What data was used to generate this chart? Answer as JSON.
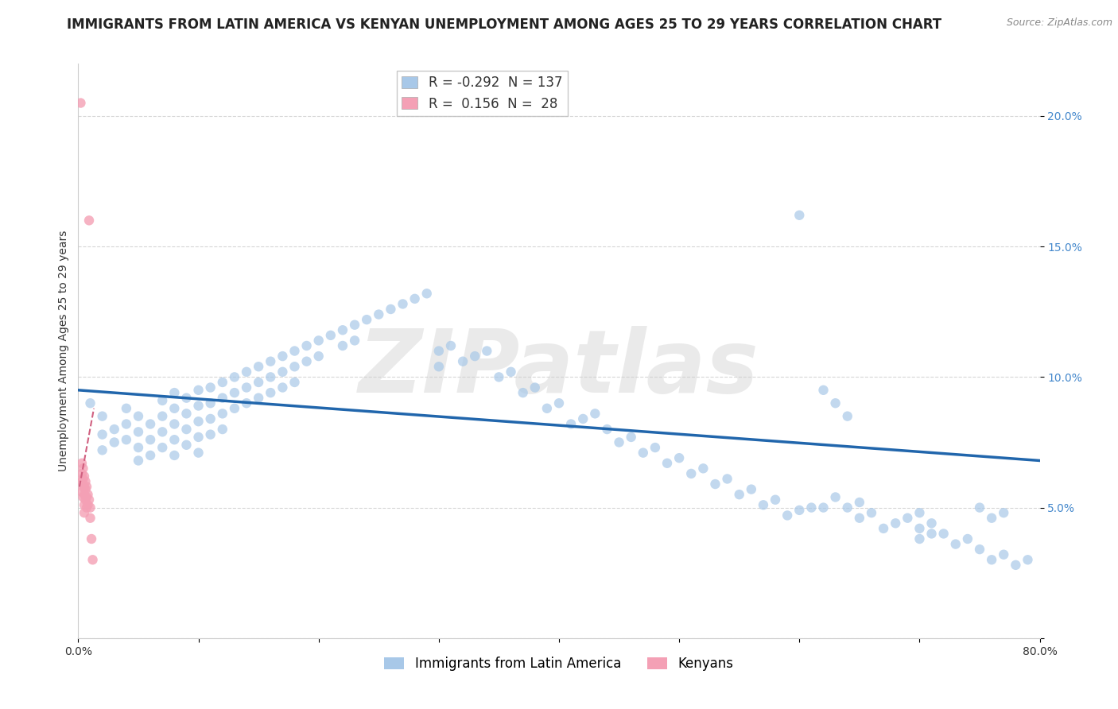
{
  "title": "IMMIGRANTS FROM LATIN AMERICA VS KENYAN UNEMPLOYMENT AMONG AGES 25 TO 29 YEARS CORRELATION CHART",
  "source": "Source: ZipAtlas.com",
  "ylabel": "Unemployment Among Ages 25 to 29 years",
  "xlim": [
    0.0,
    0.8
  ],
  "ylim": [
    0.0,
    0.22
  ],
  "xticks": [
    0.0,
    0.1,
    0.2,
    0.3,
    0.4,
    0.5,
    0.6,
    0.7,
    0.8
  ],
  "xtick_labels": [
    "0.0%",
    "",
    "",
    "",
    "",
    "",
    "",
    "",
    "80.0%"
  ],
  "yticks": [
    0.0,
    0.05,
    0.1,
    0.15,
    0.2
  ],
  "ytick_labels": [
    "",
    "5.0%",
    "10.0%",
    "15.0%",
    "20.0%"
  ],
  "legend_blue_r": "-0.292",
  "legend_blue_n": "137",
  "legend_pink_r": "0.156",
  "legend_pink_n": "28",
  "blue_color": "#a8c8e8",
  "pink_color": "#f4a0b5",
  "blue_trend_color": "#2166ac",
  "pink_trend_color": "#d06080",
  "watermark": "ZIPatlas",
  "watermark_color": "#cccccc",
  "blue_points_x": [
    0.01,
    0.02,
    0.02,
    0.02,
    0.03,
    0.03,
    0.04,
    0.04,
    0.04,
    0.05,
    0.05,
    0.05,
    0.05,
    0.06,
    0.06,
    0.06,
    0.07,
    0.07,
    0.07,
    0.07,
    0.08,
    0.08,
    0.08,
    0.08,
    0.08,
    0.09,
    0.09,
    0.09,
    0.09,
    0.1,
    0.1,
    0.1,
    0.1,
    0.1,
    0.11,
    0.11,
    0.11,
    0.11,
    0.12,
    0.12,
    0.12,
    0.12,
    0.13,
    0.13,
    0.13,
    0.14,
    0.14,
    0.14,
    0.15,
    0.15,
    0.15,
    0.16,
    0.16,
    0.16,
    0.17,
    0.17,
    0.17,
    0.18,
    0.18,
    0.18,
    0.19,
    0.19,
    0.2,
    0.2,
    0.21,
    0.22,
    0.22,
    0.23,
    0.23,
    0.24,
    0.25,
    0.26,
    0.27,
    0.28,
    0.29,
    0.3,
    0.3,
    0.31,
    0.32,
    0.33,
    0.34,
    0.35,
    0.36,
    0.37,
    0.38,
    0.39,
    0.4,
    0.41,
    0.42,
    0.43,
    0.44,
    0.45,
    0.46,
    0.47,
    0.48,
    0.49,
    0.5,
    0.51,
    0.52,
    0.53,
    0.54,
    0.55,
    0.56,
    0.57,
    0.58,
    0.59,
    0.6,
    0.61,
    0.62,
    0.63,
    0.64,
    0.65,
    0.65,
    0.66,
    0.67,
    0.68,
    0.69,
    0.7,
    0.7,
    0.71,
    0.72,
    0.73,
    0.74,
    0.75,
    0.76,
    0.77,
    0.78,
    0.79,
    0.6,
    0.62,
    0.63,
    0.64,
    0.7,
    0.71,
    0.75,
    0.76,
    0.77
  ],
  "blue_points_y": [
    0.09,
    0.085,
    0.078,
    0.072,
    0.08,
    0.075,
    0.088,
    0.082,
    0.076,
    0.085,
    0.079,
    0.073,
    0.068,
    0.082,
    0.076,
    0.07,
    0.091,
    0.085,
    0.079,
    0.073,
    0.094,
    0.088,
    0.082,
    0.076,
    0.07,
    0.092,
    0.086,
    0.08,
    0.074,
    0.095,
    0.089,
    0.083,
    0.077,
    0.071,
    0.096,
    0.09,
    0.084,
    0.078,
    0.098,
    0.092,
    0.086,
    0.08,
    0.1,
    0.094,
    0.088,
    0.102,
    0.096,
    0.09,
    0.104,
    0.098,
    0.092,
    0.106,
    0.1,
    0.094,
    0.108,
    0.102,
    0.096,
    0.11,
    0.104,
    0.098,
    0.112,
    0.106,
    0.114,
    0.108,
    0.116,
    0.118,
    0.112,
    0.12,
    0.114,
    0.122,
    0.124,
    0.126,
    0.128,
    0.13,
    0.132,
    0.11,
    0.104,
    0.112,
    0.106,
    0.108,
    0.11,
    0.1,
    0.102,
    0.094,
    0.096,
    0.088,
    0.09,
    0.082,
    0.084,
    0.086,
    0.08,
    0.075,
    0.077,
    0.071,
    0.073,
    0.067,
    0.069,
    0.063,
    0.065,
    0.059,
    0.061,
    0.055,
    0.057,
    0.051,
    0.053,
    0.047,
    0.049,
    0.05,
    0.05,
    0.054,
    0.05,
    0.052,
    0.046,
    0.048,
    0.042,
    0.044,
    0.046,
    0.042,
    0.038,
    0.04,
    0.04,
    0.036,
    0.038,
    0.034,
    0.03,
    0.032,
    0.028,
    0.03,
    0.162,
    0.095,
    0.09,
    0.085,
    0.048,
    0.044,
    0.05,
    0.046,
    0.048
  ],
  "pink_points_x": [
    0.002,
    0.003,
    0.003,
    0.003,
    0.003,
    0.004,
    0.004,
    0.004,
    0.004,
    0.005,
    0.005,
    0.005,
    0.005,
    0.005,
    0.006,
    0.006,
    0.006,
    0.007,
    0.007,
    0.007,
    0.008,
    0.008,
    0.009,
    0.009,
    0.01,
    0.01,
    0.011,
    0.012
  ],
  "pink_points_y": [
    0.205,
    0.067,
    0.063,
    0.06,
    0.056,
    0.065,
    0.061,
    0.058,
    0.054,
    0.062,
    0.058,
    0.055,
    0.051,
    0.048,
    0.06,
    0.057,
    0.053,
    0.058,
    0.054,
    0.05,
    0.055,
    0.051,
    0.16,
    0.053,
    0.05,
    0.046,
    0.038,
    0.03
  ],
  "blue_trend_x": [
    0.0,
    0.8
  ],
  "blue_trend_y": [
    0.095,
    0.068
  ],
  "pink_trend_x": [
    0.001,
    0.013
  ],
  "pink_trend_y": [
    0.058,
    0.088
  ],
  "background_color": "#ffffff",
  "grid_color": "#cccccc",
  "title_fontsize": 12,
  "axis_label_fontsize": 10,
  "tick_fontsize": 10,
  "legend_fontsize": 12,
  "marker_size": 80
}
